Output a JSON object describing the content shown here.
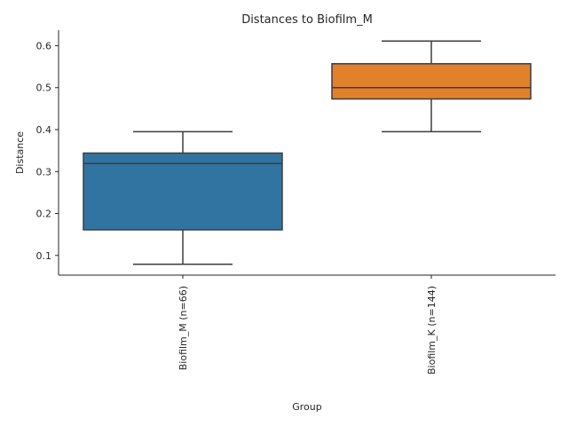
{
  "chart_data": {
    "type": "box",
    "title": "Distances to Biofilm_M",
    "xlabel": "Group",
    "ylabel": "Distance",
    "ylim": [
      0.053,
      0.637
    ],
    "yticks": [
      "0.1",
      "0.2",
      "0.3",
      "0.4",
      "0.5",
      "0.6"
    ],
    "grid": false,
    "categories": [
      "Biofilm_M (n=66)",
      "Biofilm_K (n=144)"
    ],
    "boxes": [
      {
        "label": "Biofilm_M (n=66)",
        "min": 0.079,
        "q1": 0.161,
        "median": 0.319,
        "q3": 0.344,
        "max": 0.395,
        "color": "#3274a1"
      },
      {
        "label": "Biofilm_K (n=144)",
        "min": 0.395,
        "q1": 0.473,
        "median": 0.5,
        "q3": 0.557,
        "max": 0.611,
        "color": "#e1812c"
      }
    ]
  }
}
